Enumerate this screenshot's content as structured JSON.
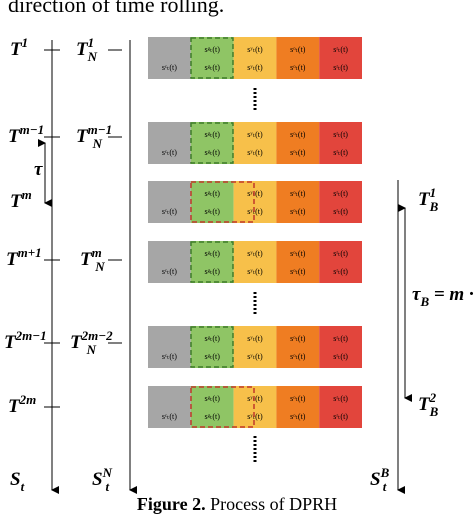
{
  "header": {
    "text": "direction of time rolling."
  },
  "axes": [
    {
      "labels": [
        {
          "base": "T",
          "sup": "1",
          "sub": ""
        },
        {
          "base": "T",
          "sup": "m−1",
          "sub": ""
        },
        {
          "base": "τ",
          "sup": "",
          "sub": ""
        },
        {
          "base": "T",
          "sup": "m",
          "sub": ""
        },
        {
          "base": "T",
          "sup": "m+1",
          "sub": ""
        },
        {
          "base": "T",
          "sup": "2m−1",
          "sub": ""
        },
        {
          "base": "T",
          "sup": "2m",
          "sub": ""
        },
        {
          "base": "S",
          "sup": "",
          "sub": "t"
        }
      ]
    },
    {
      "labels": [
        {
          "base": "T",
          "sup": "1",
          "sub": "N"
        },
        {
          "base": "T",
          "sup": "m−1",
          "sub": "N"
        },
        {
          "base": "T",
          "sup": "m",
          "sub": "N"
        },
        {
          "base": "T",
          "sup": "2m−2",
          "sub": "N"
        },
        {
          "base": "S",
          "sup": "N",
          "sub": "t"
        }
      ]
    },
    {
      "labels": [
        {
          "base": "T",
          "sup": "1",
          "sub": "B"
        },
        {
          "base": "τ",
          "sup": "",
          "sub": "B",
          "tail": " = m · τ"
        },
        {
          "base": "T",
          "sup": "2",
          "sub": "B"
        },
        {
          "base": "S",
          "sup": "B",
          "sub": "t"
        }
      ]
    }
  ],
  "block": {
    "segments": [
      {
        "top": "",
        "bottom": "sᶜₜ(t)"
      },
      {
        "top": "sᵍₜ(t)",
        "bottom": "sᵍₜ(t)"
      },
      {
        "top": "sʸₜ(t)",
        "bottom": "sʸₜ(t)"
      },
      {
        "top": "sᵒₜ(t)",
        "bottom": "sᵒₜ(t)"
      },
      {
        "top": "sʳₜ(t)",
        "bottom": "sʳₜ(t)"
      }
    ]
  },
  "caption": {
    "label": "Figure 2.",
    "text": " Process of DPRH"
  }
}
